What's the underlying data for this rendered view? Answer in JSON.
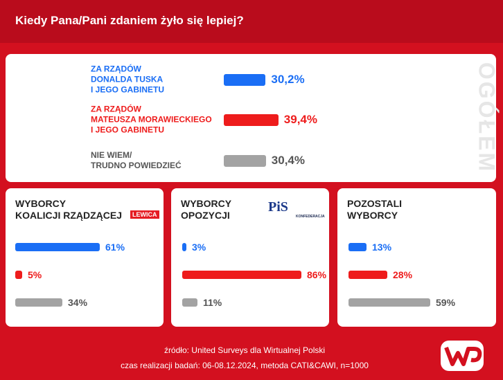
{
  "title": "Kiedy Pana/Pani zdaniem żyło się lepiej?",
  "source": "źródło: United Surveys dla Wirtualnej Polski",
  "method": "czas realizacji badań: 06-08.12.2024, metoda CATI&CAWI, n=1000",
  "chart_data": [
    {
      "type": "bar",
      "orientation": "horizontal",
      "side_label": "OGÓŁEM",
      "categories": [
        "ZA RZĄDÓW\nDONALDA TUSKA\nI JEGO GABINETU",
        "ZA RZĄDÓW\nMATEUSZA MORAWIECKIEGO\nI JEGO GABINETU",
        "NIE WIEM/\nTRUDNO POWIEDZIEĆ"
      ],
      "values": [
        30.2,
        39.4,
        30.4
      ],
      "value_labels": [
        "30,2%",
        "39,4%",
        "30,4%"
      ],
      "colors": [
        "#1a6ef5",
        "#ee1c1c",
        "#a3a3a3"
      ],
      "text_colors": [
        "#1a6ef5",
        "#ee1c1c",
        "#555555"
      ],
      "xlim": [
        0,
        100
      ]
    },
    {
      "type": "bar",
      "orientation": "horizontal",
      "title": "WYBORCY\nKOALICJI RZĄDZĄCEJ",
      "logos": [
        "LEWICA"
      ],
      "values": [
        61,
        5,
        34
      ],
      "value_labels": [
        "61%",
        "5%",
        "34%"
      ],
      "colors": [
        "#1a6ef5",
        "#ee1c1c",
        "#a3a3a3"
      ],
      "text_colors": [
        "#1a6ef5",
        "#ee1c1c",
        "#555555"
      ],
      "xlim": [
        0,
        100
      ]
    },
    {
      "type": "bar",
      "orientation": "horizontal",
      "title": "WYBORCY\nOPOZYCJI",
      "logos": [
        "PiS",
        "KONFEDERACJA"
      ],
      "values": [
        3,
        86,
        11
      ],
      "value_labels": [
        "3%",
        "86%",
        "11%"
      ],
      "colors": [
        "#1a6ef5",
        "#ee1c1c",
        "#a3a3a3"
      ],
      "text_colors": [
        "#1a6ef5",
        "#ee1c1c",
        "#555555"
      ],
      "xlim": [
        0,
        100
      ]
    },
    {
      "type": "bar",
      "orientation": "horizontal",
      "title": "POZOSTALI\nWYBORCY",
      "values": [
        13,
        28,
        59
      ],
      "value_labels": [
        "13%",
        "28%",
        "59%"
      ],
      "colors": [
        "#1a6ef5",
        "#ee1c1c",
        "#a3a3a3"
      ],
      "text_colors": [
        "#1a6ef5",
        "#ee1c1c",
        "#555555"
      ],
      "xlim": [
        0,
        100
      ]
    }
  ]
}
